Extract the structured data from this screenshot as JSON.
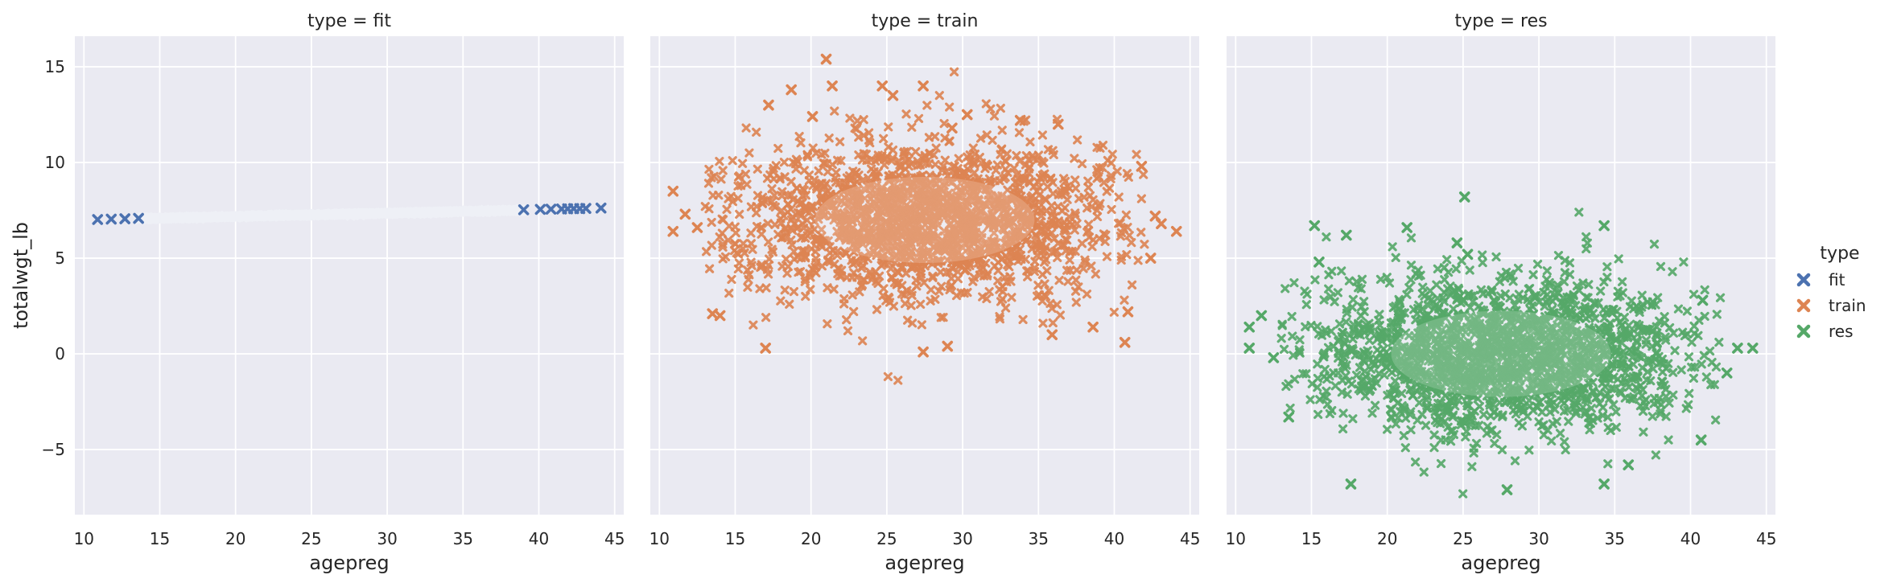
{
  "chart_data": {
    "type": "scatter",
    "marker": "x",
    "xlabel": "agepreg",
    "ylabel": "totalwgt_lb",
    "xlim": [
      9.4,
      45.6
    ],
    "ylim": [
      -8.4,
      16.6
    ],
    "xticks": [
      10,
      15,
      20,
      25,
      30,
      35,
      40,
      45
    ],
    "yticks": [
      -5,
      0,
      5,
      10,
      15
    ],
    "grid": true,
    "background": "#eaeaf2",
    "legend": {
      "title": "type",
      "placement": "right",
      "entries": [
        {
          "label": "fit",
          "color": "#4c72b0"
        },
        {
          "label": "train",
          "color": "#dd8452"
        },
        {
          "label": "res",
          "color": "#55a868"
        }
      ]
    },
    "panels": [
      {
        "title": "type = fit",
        "color": "#4c72b0",
        "dense_range": {
          "x": [
            13.5,
            39
          ],
          "y": [
            7.05,
            7.5
          ]
        },
        "points": [
          [
            10.9,
            7.02
          ],
          [
            11.8,
            7.04
          ],
          [
            12.7,
            7.06
          ],
          [
            13.6,
            7.08
          ],
          [
            39.0,
            7.53
          ],
          [
            40.1,
            7.55
          ],
          [
            40.8,
            7.56
          ],
          [
            41.5,
            7.57
          ],
          [
            41.9,
            7.58
          ],
          [
            42.3,
            7.59
          ],
          [
            42.7,
            7.59
          ],
          [
            43.1,
            7.6
          ],
          [
            44.1,
            7.62
          ]
        ]
      },
      {
        "title": "type = train",
        "color": "#dd8452",
        "dense_range": {
          "x": [
            14,
            41
          ],
          "y": [
            2.5,
            11.5
          ]
        },
        "points": [
          [
            10.9,
            8.5
          ],
          [
            10.9,
            6.4
          ],
          [
            11.7,
            7.3
          ],
          [
            12.5,
            6.6
          ],
          [
            13.5,
            2.1
          ],
          [
            14.0,
            2.0
          ],
          [
            17.2,
            13.0
          ],
          [
            17.0,
            0.3
          ],
          [
            18.7,
            13.8
          ],
          [
            20.1,
            12.4
          ],
          [
            21.0,
            15.4
          ],
          [
            21.4,
            14.0
          ],
          [
            24.7,
            14.0
          ],
          [
            25.4,
            13.5
          ],
          [
            27.4,
            14.0
          ],
          [
            29.3,
            11.8
          ],
          [
            30.3,
            12.5
          ],
          [
            33.8,
            12.2
          ],
          [
            36.3,
            12.0
          ],
          [
            27.4,
            0.1
          ],
          [
            29.0,
            0.4
          ],
          [
            35.9,
            1.0
          ],
          [
            38.6,
            1.4
          ],
          [
            40.7,
            0.6
          ],
          [
            40.9,
            2.2
          ],
          [
            41.8,
            9.8
          ],
          [
            42.4,
            5.0
          ],
          [
            42.7,
            7.2
          ],
          [
            43.1,
            6.8
          ],
          [
            44.1,
            6.4
          ]
        ]
      },
      {
        "title": "type = res",
        "color": "#55a868",
        "dense_range": {
          "x": [
            14,
            41
          ],
          "y": [
            -4.5,
            4.5
          ]
        },
        "points": [
          [
            10.9,
            1.4
          ],
          [
            10.9,
            0.3
          ],
          [
            11.7,
            2.0
          ],
          [
            12.5,
            -0.2
          ],
          [
            13.5,
            -3.3
          ],
          [
            15.2,
            6.7
          ],
          [
            15.5,
            4.8
          ],
          [
            17.3,
            6.2
          ],
          [
            17.6,
            -6.8
          ],
          [
            21.3,
            6.6
          ],
          [
            24.6,
            5.8
          ],
          [
            25.1,
            8.2
          ],
          [
            25.3,
            5.2
          ],
          [
            27.9,
            -7.1
          ],
          [
            34.3,
            6.7
          ],
          [
            34.3,
            -6.8
          ],
          [
            35.9,
            -5.8
          ],
          [
            40.7,
            -4.5
          ],
          [
            40.8,
            2.8
          ],
          [
            42.4,
            -1.0
          ],
          [
            43.1,
            0.3
          ],
          [
            44.1,
            0.3
          ]
        ]
      }
    ]
  }
}
